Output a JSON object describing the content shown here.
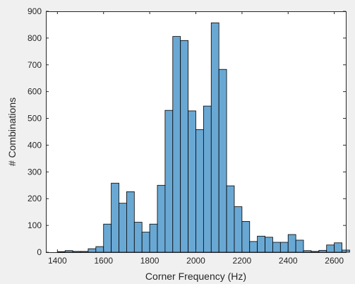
{
  "chart_data": {
    "type": "bar",
    "title": "",
    "xlabel": "Corner Frequency (Hz)",
    "ylabel": "# Combinations",
    "xlim": [
      1350,
      2650
    ],
    "ylim": [
      0,
      900
    ],
    "xticks": [
      1400,
      1600,
      1800,
      2000,
      2200,
      2400,
      2600
    ],
    "yticks": [
      0,
      100,
      200,
      300,
      400,
      500,
      600,
      700,
      800,
      900
    ],
    "bin_width": 33.33,
    "bin_start": 1400,
    "values": [
      2,
      6,
      3,
      3,
      13,
      21,
      105,
      258,
      183,
      226,
      112,
      75,
      105,
      250,
      530,
      806,
      791,
      528,
      458,
      546,
      857,
      683,
      248,
      170,
      115,
      40,
      60,
      56,
      37,
      37,
      66,
      45,
      6,
      3,
      7,
      27,
      35,
      8
    ],
    "bar_color": "#6aa8d4",
    "edge_color": "#000000",
    "grid": false,
    "box": true
  }
}
